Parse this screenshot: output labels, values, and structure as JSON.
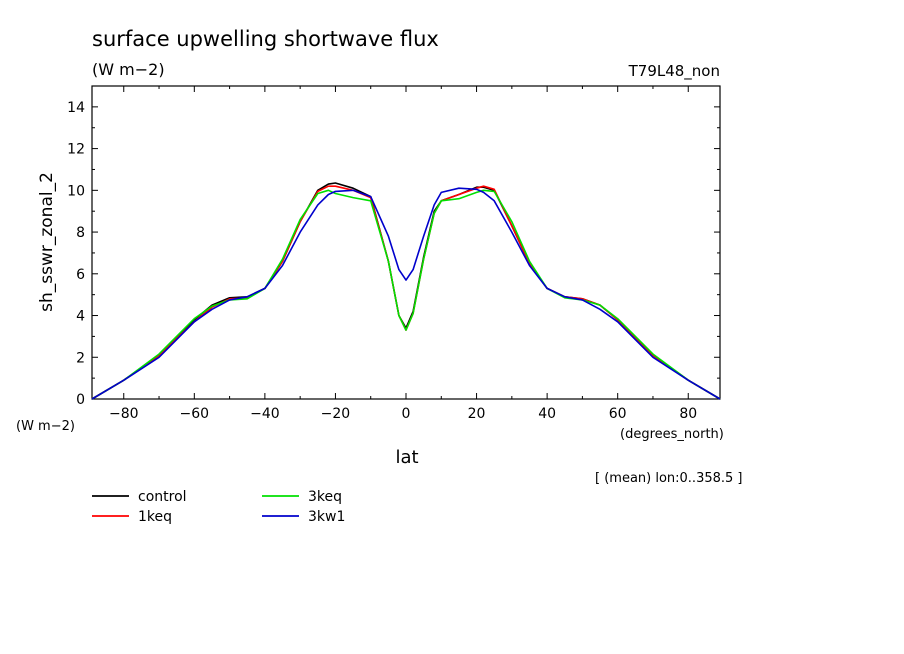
{
  "chart_data": {
    "type": "line",
    "title": "surface upwelling shortwave flux",
    "units": "(W m−2)",
    "run_label": "T79L48_non",
    "ylabel": "sh_sswr_zonal_2",
    "y_units_label": "(W m−2)",
    "xlabel": "lat",
    "x_units_label": "(degrees_north)",
    "subset_note": "[ (mean) lon:0..358.5 ]",
    "xlim": [
      -89,
      89
    ],
    "ylim": [
      0,
      15
    ],
    "x_ticks": [
      -80,
      -60,
      -40,
      -20,
      0,
      20,
      40,
      60,
      80
    ],
    "y_ticks": [
      0,
      2,
      4,
      6,
      8,
      10,
      12,
      14
    ],
    "grid": false,
    "legend_placement": "below",
    "series": [
      {
        "name": "control",
        "color": "#000000",
        "x": [
          -89,
          -80,
          -70,
          -60,
          -55,
          -50,
          -45,
          -40,
          -35,
          -30,
          -25,
          -22,
          -20,
          -15,
          -10,
          -5,
          -2,
          0,
          2,
          5,
          8,
          10,
          15,
          20,
          22,
          25,
          30,
          35,
          40,
          45,
          50,
          55,
          60,
          70,
          80,
          89
        ],
        "y": [
          0,
          0.9,
          2.1,
          3.8,
          4.5,
          4.85,
          4.9,
          5.3,
          6.6,
          8.5,
          10.0,
          10.3,
          10.35,
          10.1,
          9.7,
          6.6,
          4.0,
          3.4,
          4.2,
          6.8,
          9.0,
          9.5,
          9.8,
          10.15,
          10.15,
          10.0,
          8.3,
          6.5,
          5.3,
          4.9,
          4.8,
          4.5,
          3.8,
          2.1,
          0.9,
          0
        ]
      },
      {
        "name": "1keq",
        "color": "#ff0000",
        "x": [
          -89,
          -80,
          -70,
          -60,
          -55,
          -50,
          -45,
          -40,
          -35,
          -30,
          -25,
          -22,
          -20,
          -15,
          -10,
          -5,
          -2,
          0,
          2,
          5,
          8,
          10,
          15,
          20,
          22,
          25,
          30,
          35,
          40,
          45,
          50,
          55,
          60,
          70,
          80,
          89
        ],
        "y": [
          0,
          0.9,
          2.1,
          3.7,
          4.4,
          4.8,
          4.85,
          5.3,
          6.6,
          8.5,
          9.95,
          10.2,
          10.2,
          10.0,
          9.65,
          6.6,
          4.0,
          3.3,
          4.1,
          6.7,
          8.9,
          9.5,
          9.8,
          10.1,
          10.2,
          10.05,
          8.3,
          6.5,
          5.3,
          4.9,
          4.8,
          4.5,
          3.8,
          2.1,
          0.9,
          0
        ]
      },
      {
        "name": "3keq",
        "color": "#00e000",
        "x": [
          -89,
          -80,
          -70,
          -60,
          -55,
          -50,
          -45,
          -40,
          -35,
          -30,
          -25,
          -22,
          -20,
          -15,
          -10,
          -5,
          -2,
          0,
          2,
          5,
          8,
          10,
          15,
          20,
          22,
          25,
          30,
          35,
          40,
          45,
          50,
          55,
          60,
          70,
          80,
          89
        ],
        "y": [
          0,
          0.9,
          2.15,
          3.85,
          4.45,
          4.75,
          4.8,
          5.3,
          6.7,
          8.6,
          9.85,
          10.0,
          9.85,
          9.65,
          9.5,
          6.6,
          4.0,
          3.3,
          4.1,
          6.7,
          8.9,
          9.5,
          9.6,
          9.9,
          10.0,
          9.95,
          8.5,
          6.6,
          5.3,
          4.85,
          4.75,
          4.5,
          3.85,
          2.15,
          0.9,
          0
        ]
      },
      {
        "name": "3kw1",
        "color": "#0000cc",
        "x": [
          -89,
          -80,
          -70,
          -60,
          -55,
          -50,
          -45,
          -40,
          -35,
          -30,
          -25,
          -22,
          -20,
          -15,
          -10,
          -5,
          -2,
          0,
          2,
          5,
          8,
          10,
          15,
          20,
          22,
          25,
          30,
          35,
          40,
          45,
          50,
          55,
          60,
          70,
          80,
          89
        ],
        "y": [
          0,
          0.9,
          2.0,
          3.7,
          4.3,
          4.75,
          4.9,
          5.3,
          6.4,
          8.0,
          9.3,
          9.8,
          9.95,
          10.0,
          9.7,
          7.8,
          6.2,
          5.7,
          6.2,
          7.8,
          9.3,
          9.9,
          10.1,
          10.05,
          9.9,
          9.5,
          8.0,
          6.4,
          5.3,
          4.9,
          4.75,
          4.3,
          3.7,
          2.0,
          0.9,
          0
        ]
      }
    ]
  }
}
